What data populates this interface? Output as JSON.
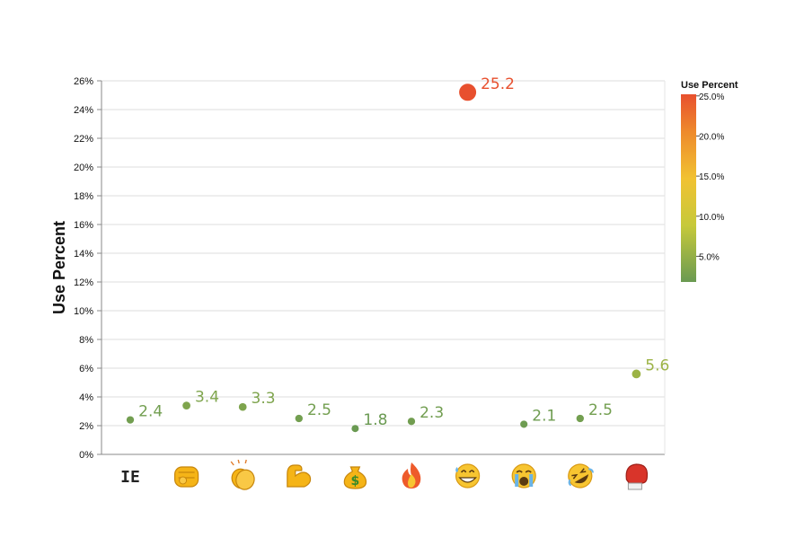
{
  "chart_data": {
    "type": "scatter",
    "ylabel": "Use Percent",
    "xlabel": "",
    "ylim": [
      0,
      26
    ],
    "y_ticks": [
      "0%",
      "2%",
      "4%",
      "6%",
      "8%",
      "10%",
      "12%",
      "14%",
      "16%",
      "18%",
      "20%",
      "22%",
      "24%",
      "26%"
    ],
    "grid": true,
    "categories": [
      "IE",
      "oncoming-fist-emoji",
      "clapping-hands-emoji",
      "flexed-biceps-emoji",
      "money-bag-emoji",
      "fire-emoji",
      "grinning-sweat-emoji",
      "loudly-crying-emoji",
      "rolling-on-floor-laughing-emoji",
      "boxing-glove-emoji"
    ],
    "category_text": [
      "IE",
      "",
      "",
      "",
      "",
      "",
      "",
      "",
      "",
      ""
    ],
    "values": [
      2.4,
      3.4,
      3.3,
      2.5,
      1.8,
      2.3,
      25.2,
      2.1,
      2.5,
      5.6
    ],
    "data_labels": [
      "2.4",
      "3.4",
      "3.3",
      "2.5",
      "1.8",
      "2.3",
      "25.2",
      "2.1",
      "2.5",
      "5.6"
    ],
    "legend": {
      "title": "Use Percent",
      "placement": "right",
      "ticks": [
        "25.0%",
        "20.0%",
        "15.0%",
        "10.0%",
        "5.0%"
      ],
      "tick_values": [
        25,
        20,
        15,
        10,
        5
      ],
      "range": [
        1.8,
        25.2
      ],
      "colors": [
        "#6a9a52",
        "#c6c93a",
        "#f1c232",
        "#ee8a2c",
        "#e8502e"
      ]
    }
  }
}
